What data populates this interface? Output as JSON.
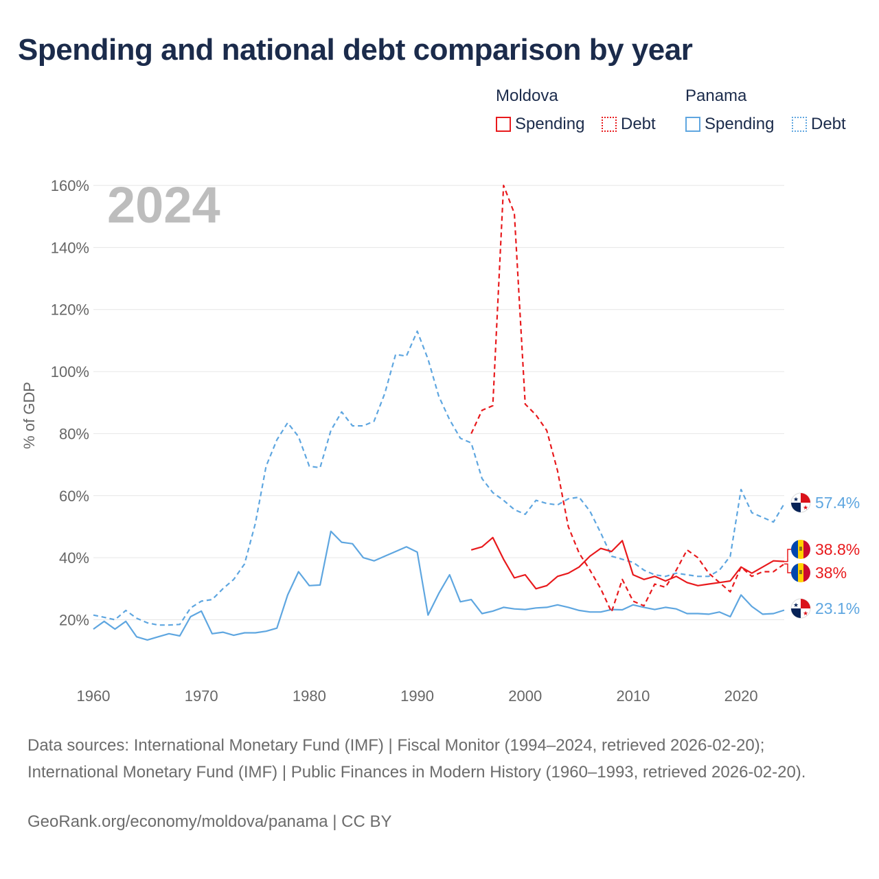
{
  "title": "Spending and national debt comparison by year",
  "legend": {
    "groups": [
      {
        "country": "Moldova",
        "spending_label": "Spending",
        "debt_label": "Debt",
        "color": "#e8191c"
      },
      {
        "country": "Panama",
        "spending_label": "Spending",
        "debt_label": "Debt",
        "color": "#5ea6e0"
      }
    ]
  },
  "chart_data": {
    "type": "line",
    "year_label": "2024",
    "ylabel": "% of GDP",
    "xlim": [
      1960,
      2024
    ],
    "ylim": [
      5,
      165
    ],
    "yticks": [
      20,
      40,
      60,
      80,
      100,
      120,
      140,
      160
    ],
    "ytick_labels": [
      "20%",
      "40%",
      "60%",
      "80%",
      "100%",
      "120%",
      "140%",
      "160%"
    ],
    "xticks": [
      1960,
      1970,
      1980,
      1990,
      2000,
      2010,
      2020
    ],
    "xtick_labels": [
      "1960",
      "1970",
      "1980",
      "1990",
      "2000",
      "2010",
      "2020"
    ],
    "grid": true,
    "series": [
      {
        "name": "Panama Debt",
        "country": "Panama",
        "measure": "Debt",
        "color": "#5ea6e0",
        "dash": true,
        "start_year": 1960,
        "values": [
          21.5,
          20.8,
          20.0,
          23.0,
          20.5,
          19.0,
          18.3,
          18.3,
          18.5,
          23.8,
          26.0,
          26.5,
          30.0,
          33.0,
          38.0,
          51.0,
          69.5,
          78.0,
          83.5,
          79.0,
          69.5,
          69.0,
          81.0,
          87.0,
          82.5,
          82.5,
          84.0,
          93.0,
          105.5,
          105.0,
          113.0,
          104.0,
          92.0,
          84.5,
          78.5,
          77.0,
          65.5,
          61.0,
          58.5,
          55.5,
          54.0,
          58.5,
          57.5,
          57.0,
          59.0,
          59.5,
          55.0,
          48.0,
          40.5,
          39.5,
          38.5,
          36.0,
          34.5,
          34.0,
          35.0,
          34.5,
          34.0,
          34.0,
          36.0,
          40.5,
          62.0,
          54.5,
          53.0,
          51.5,
          57.4
        ],
        "end_label": "57.4%"
      },
      {
        "name": "Panama Spending",
        "country": "Panama",
        "measure": "Spending",
        "color": "#5ea6e0",
        "dash": false,
        "start_year": 1960,
        "values": [
          17.0,
          19.5,
          17.0,
          19.5,
          14.5,
          13.5,
          14.5,
          15.5,
          14.8,
          21.0,
          22.8,
          15.5,
          16.0,
          15.0,
          15.8,
          15.8,
          16.3,
          17.3,
          28.0,
          35.5,
          31.0,
          31.2,
          48.5,
          45.0,
          44.5,
          40.0,
          39.0,
          40.5,
          42.0,
          43.5,
          41.8,
          21.5,
          28.5,
          34.5,
          25.8,
          26.5,
          22.0,
          22.8,
          24.0,
          23.5,
          23.3,
          23.8,
          24.0,
          24.8,
          24.0,
          23.0,
          22.5,
          22.5,
          23.3,
          23.2,
          24.8,
          24.0,
          23.3,
          24.0,
          23.5,
          22.0,
          22.0,
          21.8,
          22.5,
          21.0,
          28.0,
          24.3,
          21.8,
          22.0,
          23.1
        ],
        "end_label": "23.1%"
      },
      {
        "name": "Moldova Debt",
        "country": "Moldova",
        "measure": "Debt",
        "color": "#e8191c",
        "dash": true,
        "start_year": 1995,
        "values": [
          80.0,
          87.5,
          89.0,
          160.0,
          151.0,
          89.5,
          86.0,
          81.0,
          68.0,
          50.0,
          41.5,
          36.0,
          30.0,
          22.5,
          33.0,
          26.0,
          24.5,
          31.5,
          30.5,
          36.0,
          42.5,
          40.0,
          35.0,
          32.0,
          29.0,
          37.0,
          34.0,
          35.5,
          35.5,
          38.0
        ],
        "end_label": "38%"
      },
      {
        "name": "Moldova Spending",
        "country": "Moldova",
        "measure": "Spending",
        "color": "#e8191c",
        "dash": false,
        "start_year": 1995,
        "values": [
          42.5,
          43.5,
          46.5,
          39.5,
          33.5,
          34.5,
          30.0,
          31.0,
          34.0,
          35.0,
          37.0,
          40.5,
          43.0,
          42.0,
          45.5,
          34.5,
          33.0,
          34.0,
          32.5,
          34.0,
          32.0,
          31.0,
          31.5,
          32.0,
          32.5,
          37.0,
          35.0,
          37.0,
          39.0,
          38.8
        ],
        "end_label": "38.8%"
      }
    ]
  },
  "sources": "Data sources: International Monetary Fund (IMF) | Fiscal Monitor (1994–2024, retrieved 2026-02-20); International Monetary Fund (IMF) | Public Finances in Modern History (1960–1993, retrieved 2026-02-20).",
  "footer": "GeoRank.org/economy/moldova/panama | CC BY"
}
